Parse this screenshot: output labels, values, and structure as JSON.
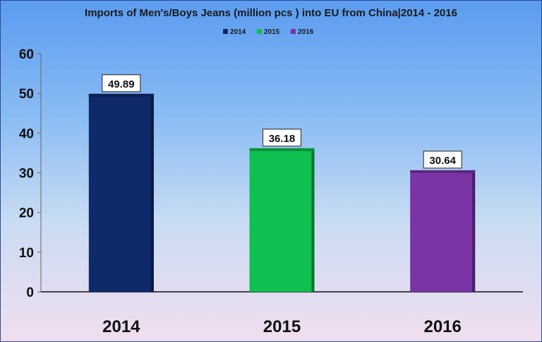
{
  "chart_data": {
    "type": "bar",
    "title": "Imports of Men's/Boys Jeans (million pcs ) into EU from China|2014 - 2016",
    "categories": [
      "2014",
      "2015",
      "2016"
    ],
    "values": [
      49.89,
      36.18,
      30.64
    ],
    "data_labels": [
      "49.89",
      "36.18",
      "30.64"
    ],
    "legend": [
      "2014",
      "2015",
      "2016"
    ],
    "legend_placement": "top-center",
    "colors": [
      "#0e2a6b",
      "#0fbf4f",
      "#7a34a6"
    ],
    "ylim": [
      0,
      60
    ],
    "yticks": [
      0,
      10,
      20,
      30,
      40,
      50,
      60
    ],
    "ytick_labels": [
      "0",
      "10",
      "20",
      "30",
      "40",
      "50",
      "60"
    ],
    "grid": false,
    "xlabel": "",
    "ylabel": ""
  }
}
